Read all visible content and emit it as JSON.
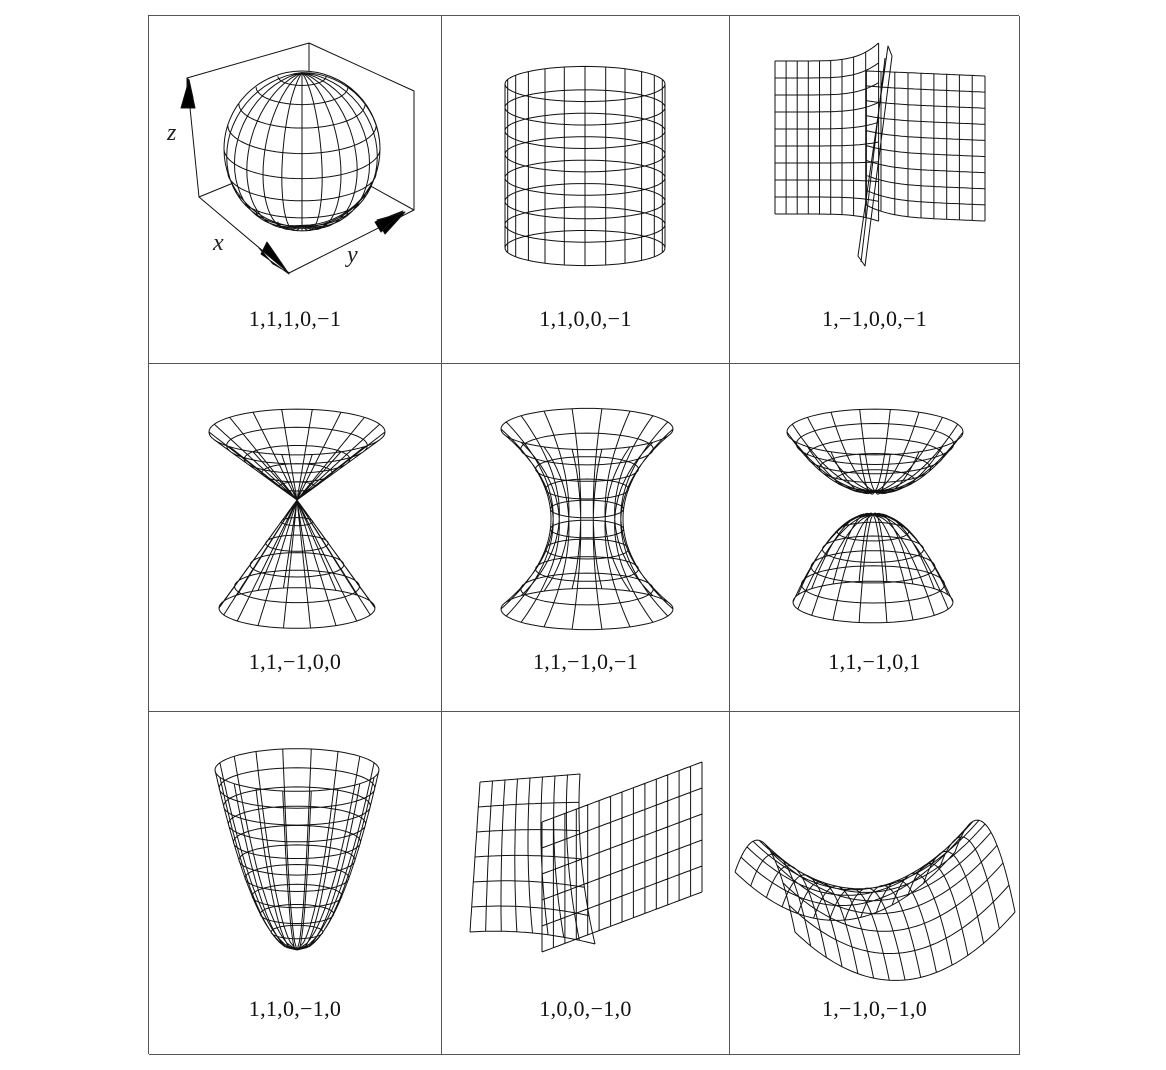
{
  "figure": {
    "cells": [
      {
        "id": "ellipsoid",
        "label": "1,1,1,0,−1"
      },
      {
        "id": "cylinder",
        "label": "1,1,0,0,−1"
      },
      {
        "id": "hyperbolic-cylinder",
        "label": "1,−1,0,0,−1"
      },
      {
        "id": "cone",
        "label": "1,1,−1,0,0"
      },
      {
        "id": "hyperboloid-one-sheet",
        "label": "1,1,−1,0,−1"
      },
      {
        "id": "hyperboloid-two-sheets",
        "label": "1,1,−1,0,1"
      },
      {
        "id": "elliptic-paraboloid",
        "label": "1,1,0,−1,0"
      },
      {
        "id": "parabolic-cylinder",
        "label": "1,0,0,−1,0"
      },
      {
        "id": "hyperbolic-paraboloid",
        "label": "1,−1,0,−1,0"
      }
    ],
    "axes": {
      "x": "x",
      "y": "y",
      "z": "z"
    }
  }
}
